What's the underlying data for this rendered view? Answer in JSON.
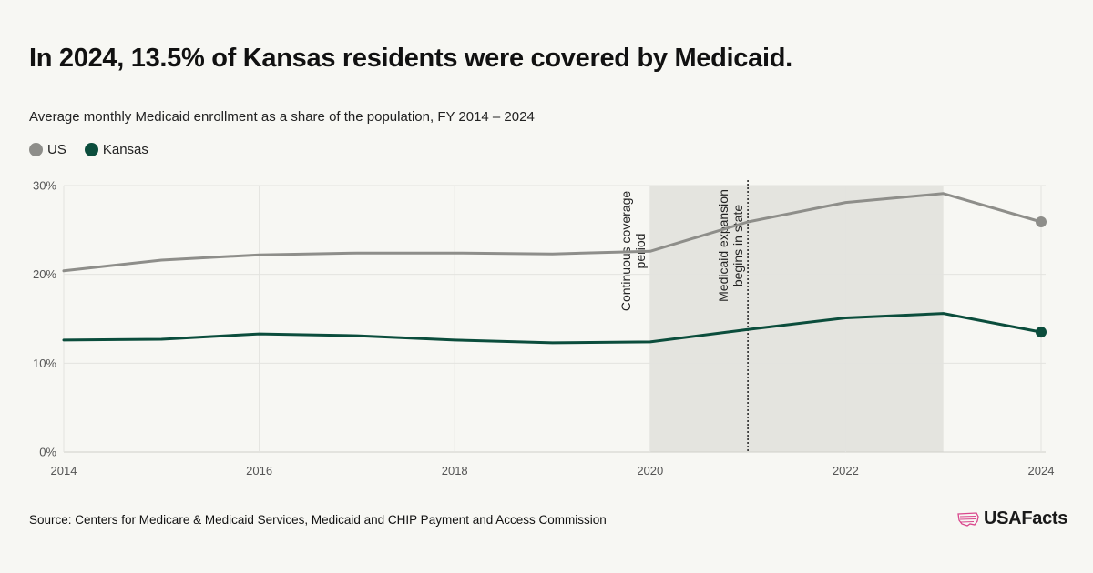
{
  "title": "In 2024, 13.5% of Kansas residents were covered by Medicaid.",
  "subtitle": "Average monthly Medicaid enrollment as a share of the population, FY 2014 – 2024",
  "source": "Source: Centers for Medicare & Medicaid Services, Medicaid and CHIP Payment and Access Commission",
  "brand": "USAFacts",
  "colors": {
    "us": "#8e8e8a",
    "kansas": "#0b4d3c",
    "shade": "#e4e4df",
    "grid": "#e3e3df",
    "brand_icon": "#d9468c"
  },
  "chart_data": {
    "type": "line",
    "x": [
      2014,
      2015,
      2016,
      2017,
      2018,
      2019,
      2020,
      2021,
      2022,
      2023,
      2024
    ],
    "x_ticks": [
      "2014",
      "2016",
      "2018",
      "2020",
      "2022",
      "2024"
    ],
    "y_ticks": [
      "0%",
      "10%",
      "20%",
      "30%"
    ],
    "ylim": [
      0,
      30
    ],
    "xlim": [
      2014,
      2024
    ],
    "grid": true,
    "legend_position": "top-left",
    "series": [
      {
        "name": "US",
        "color": "#8e8e8a",
        "values": [
          20.4,
          21.6,
          22.2,
          22.4,
          22.4,
          22.3,
          22.6,
          25.9,
          28.1,
          29.1,
          25.9
        ]
      },
      {
        "name": "Kansas",
        "color": "#0b4d3c",
        "values": [
          12.6,
          12.7,
          13.3,
          13.1,
          12.6,
          12.3,
          12.4,
          13.8,
          15.1,
          15.6,
          13.5
        ]
      }
    ],
    "shaded_region": {
      "x_start": 2020,
      "x_end": 2023,
      "label_lines": [
        "Continuous coverage",
        "period"
      ]
    },
    "vertical_marker": {
      "x": 2021,
      "label_lines": [
        "Medicaid expansion",
        "begins in state"
      ]
    }
  }
}
